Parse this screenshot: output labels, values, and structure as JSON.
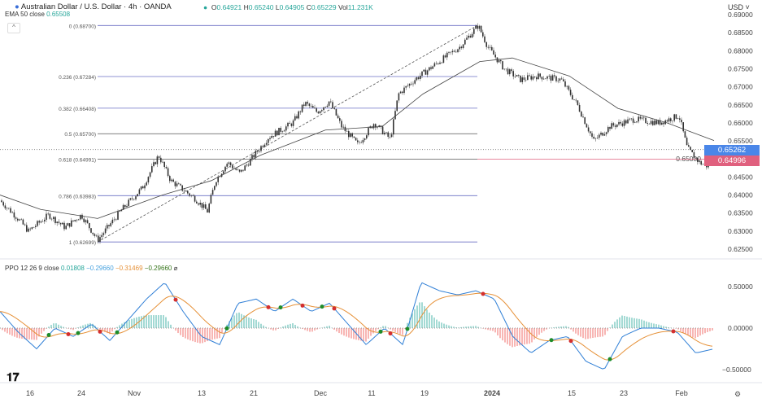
{
  "header": {
    "symbol": "Australian Dollar / U.S. Dollar · 4h · OANDA",
    "ohlc": {
      "O": "0.64921",
      "H": "0.65240",
      "L": "0.64905",
      "C": "0.65229",
      "Vol": "11.231K"
    },
    "ema_label": "EMA 50 close",
    "ema_value": "0.65508",
    "currency": "USD"
  },
  "price_tags": {
    "current": "0.65262",
    "fib_level": "0.64996",
    "current_color": "#4a86e8",
    "fib_color": "#e0607e"
  },
  "ppo_header": {
    "label": "PPO 12 26 9 close",
    "v1": "0.01808",
    "v2": "−0.29660",
    "v3": "−0.31469",
    "v4": "−0.29660"
  },
  "chart_data": [
    {
      "type": "candlestick",
      "title": "Australian Dollar / U.S. Dollar · 4h · OANDA",
      "ylim": [
        0.625,
        0.69
      ],
      "y_ticks": [
        "0.69000",
        "0.68500",
        "0.68000",
        "0.67500",
        "0.67000",
        "0.66500",
        "0.66000",
        "0.65500",
        "0.65000",
        "0.64500",
        "0.64000",
        "0.63500",
        "0.63000",
        "0.62500"
      ],
      "x_ticks": [
        "16",
        "24",
        "Nov",
        "13",
        "21",
        "Dec",
        "11",
        "19",
        "2024",
        "15",
        "23",
        "Feb"
      ],
      "price_path": [
        [
          "Oct 12",
          0.6385
        ],
        [
          "Oct 16",
          0.634
        ],
        [
          "Oct 19",
          0.63
        ],
        [
          "Oct 22",
          0.6345
        ],
        [
          "Oct 24",
          0.631
        ],
        [
          "Oct 27",
          0.6345
        ],
        [
          "Oct 30",
          0.6275
        ],
        [
          "Nov 3",
          0.636
        ],
        [
          "Nov 5",
          0.642
        ],
        [
          "Nov 7",
          0.651
        ],
        [
          "Nov 8",
          0.644
        ],
        [
          "Nov 11",
          0.639
        ],
        [
          "Nov 13",
          0.6355
        ],
        [
          "Nov 14",
          0.644
        ],
        [
          "Nov 16",
          0.649
        ],
        [
          "Nov 17",
          0.646
        ],
        [
          "Nov 21",
          0.656
        ],
        [
          "Nov 25",
          0.66
        ],
        [
          "Nov 27",
          0.6655
        ],
        [
          "Nov 29",
          0.663
        ],
        [
          "Dec 1",
          0.666
        ],
        [
          "Dec 3",
          0.659
        ],
        [
          "Dec 6",
          0.654
        ],
        [
          "Dec 8",
          0.66
        ],
        [
          "Dec 11",
          0.6555
        ],
        [
          "Dec 13",
          0.668
        ],
        [
          "Dec 16",
          0.672
        ],
        [
          "Dec 20",
          0.677
        ],
        [
          "Dec 23",
          0.681
        ],
        [
          "Dec 27",
          0.687
        ],
        [
          "Dec 29",
          0.681
        ],
        [
          "Jan 2",
          0.675
        ],
        [
          "Jan 5",
          0.672
        ],
        [
          "Jan 8",
          0.673
        ],
        [
          "Jan 12",
          0.672
        ],
        [
          "Jan 14",
          0.665
        ],
        [
          "Jan 17",
          0.655
        ],
        [
          "Jan 20",
          0.659
        ],
        [
          "Jan 24",
          0.661
        ],
        [
          "Jan 28",
          0.66
        ],
        [
          "Jan 31",
          0.662
        ],
        [
          "Feb 1",
          0.653
        ],
        [
          "Feb 3",
          0.649
        ],
        [
          "Feb 5",
          0.648
        ],
        [
          "Feb 6",
          0.6523
        ]
      ],
      "ema50_path": [
        0.64,
        0.636,
        0.6335,
        0.64,
        0.644,
        0.651,
        0.658,
        0.659,
        0.668,
        0.677,
        0.678,
        0.673,
        0.664,
        0.66,
        0.6551
      ],
      "fibonacci": [
        {
          "ratio": "0",
          "price": "0.68700"
        },
        {
          "ratio": "0.236",
          "price": "0.67284"
        },
        {
          "ratio": "0.382",
          "price": "0.66408"
        },
        {
          "ratio": "0.5",
          "price": "0.65700"
        },
        {
          "ratio": "0.618",
          "price": "0.64991"
        },
        {
          "ratio": "0.786",
          "price": "0.63983"
        },
        {
          "ratio": "1",
          "price": "0.62699"
        }
      ]
    },
    {
      "type": "line",
      "title": "PPO 12 26 9 close",
      "ylim": [
        -0.6,
        0.6
      ],
      "y_ticks": [
        "0.50000",
        "0.00000",
        "-0.50000"
      ],
      "ppo_path": [
        0.2,
        -0.05,
        -0.25,
        0.0,
        -0.1,
        0.05,
        -0.15,
        0.1,
        0.35,
        0.55,
        0.2,
        -0.1,
        -0.2,
        0.3,
        0.35,
        0.2,
        0.35,
        0.2,
        0.3,
        0.05,
        -0.2,
        0.0,
        -0.2,
        0.55,
        0.45,
        0.4,
        0.45,
        0.35,
        -0.1,
        -0.3,
        -0.15,
        -0.1,
        -0.4,
        -0.5,
        -0.1,
        0.0,
        0.0,
        -0.05,
        -0.3,
        -0.25
      ]
    }
  ],
  "footer": {
    "logo": "TV"
  }
}
